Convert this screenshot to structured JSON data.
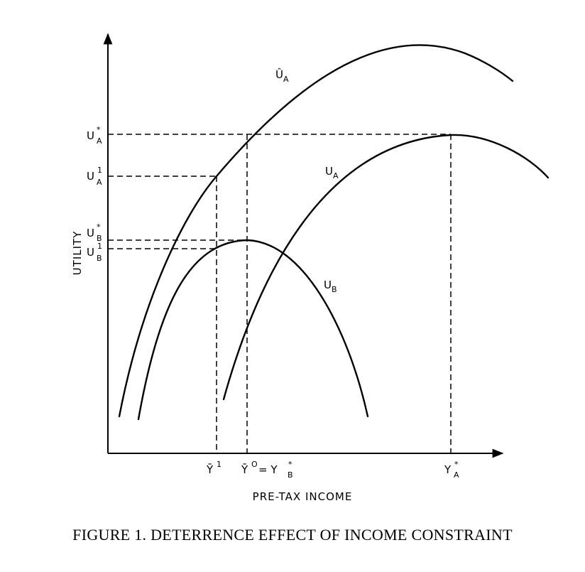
{
  "figure": {
    "caption": "FIGURE 1. DETERRENCE EFFECT OF INCOME CONSTRAINT",
    "x_axis_label": "PRE-TAX INCOME",
    "y_axis_label": "UTILITY"
  },
  "curves": {
    "u_hat_a": {
      "base": "Û",
      "sub": "A"
    },
    "u_a": {
      "base": "U",
      "sub": "A"
    },
    "u_b": {
      "base": "U",
      "sub": "B"
    }
  },
  "y_ticks": {
    "u_a_star": {
      "base": "U",
      "sup": "*",
      "sub": "A"
    },
    "u_a_1": {
      "base": "U",
      "sup": "1",
      "sub": "A"
    },
    "u_b_star": {
      "base": "U",
      "sup": "*",
      "sub": "B"
    },
    "u_b_1": {
      "base": "U",
      "sup": "1",
      "sub": "B"
    }
  },
  "x_ticks": {
    "y_bar_1": {
      "base": "Ȳ",
      "sup": "1"
    },
    "y_bar_0": {
      "base": "Ȳ",
      "sup": "O",
      "eq": "= Y",
      "sup2": "*",
      "sub2": "B"
    },
    "y_a_star": {
      "base": "Y",
      "sup": "*",
      "sub": "A"
    }
  }
}
